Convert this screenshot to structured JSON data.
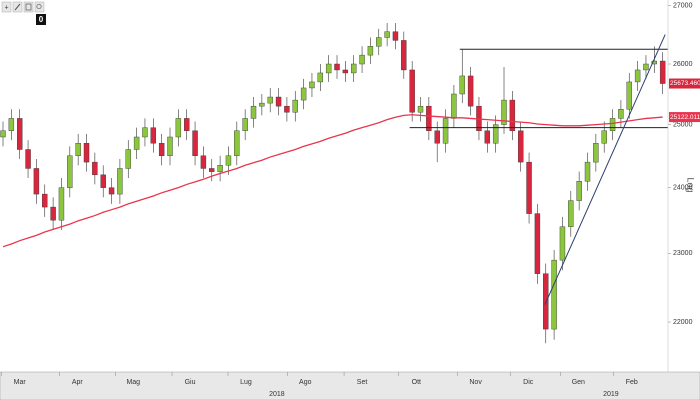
{
  "toolbar_badge": "0",
  "chart_data": {
    "type": "candlestick",
    "yscale": "log",
    "yscale_label": "Log",
    "ylim": [
      21300,
      27100
    ],
    "yticks": [
      22000,
      23000,
      24000,
      25000,
      26000,
      27000
    ],
    "xlim": [
      -0.36,
      79.64
    ],
    "xticks": [
      {
        "value": 2,
        "label": "Mar"
      },
      {
        "value": 8.9,
        "label": "Apr"
      },
      {
        "value": 15.6,
        "label": "Mag"
      },
      {
        "value": 22.4,
        "label": "Giu"
      },
      {
        "value": 29.1,
        "label": "Lug"
      },
      {
        "value": 36.2,
        "label": "Ago"
      },
      {
        "value": 43,
        "label": "Set"
      },
      {
        "value": 49.5,
        "label": "Ott"
      },
      {
        "value": 56.6,
        "label": "Nov"
      },
      {
        "value": 62.9,
        "label": "Dic"
      },
      {
        "value": 68.9,
        "label": "Gen"
      },
      {
        "value": 75.3,
        "label": "Feb"
      }
    ],
    "year_labels": [
      {
        "value": 32.8,
        "label": "2018"
      },
      {
        "value": 72.8,
        "label": "2019"
      }
    ],
    "up_color": "#8cc63f",
    "down_color": "#d7263d",
    "open": [
      24800,
      24900,
      25100,
      24600,
      24300,
      23900,
      23700,
      23500,
      24000,
      24500,
      24700,
      24400,
      24200,
      24000,
      23900,
      24300,
      24600,
      24800,
      24950,
      24700,
      24500,
      24800,
      25100,
      24900,
      24500,
      24300,
      24250,
      24350,
      24500,
      24900,
      25100,
      25300,
      25350,
      25450,
      25300,
      25200,
      25400,
      25600,
      25700,
      25850,
      26000,
      25900,
      25850,
      26000,
      26150,
      26300,
      26450,
      26550,
      26400,
      25900,
      25200,
      25300,
      24900,
      24700,
      25100,
      25500,
      25800,
      25300,
      24900,
      24700,
      25000,
      25400,
      24900,
      24400,
      23600,
      22700,
      21900,
      22900,
      23400,
      23800,
      24100,
      24400,
      24700,
      24900,
      25100,
      25250,
      25700,
      25900,
      26000,
      26050
    ],
    "high": [
      25050,
      25250,
      25250,
      24750,
      24450,
      24050,
      23850,
      24150,
      24650,
      24850,
      24850,
      24550,
      24350,
      24150,
      24450,
      24750,
      24950,
      25100,
      25100,
      24850,
      24950,
      25250,
      25250,
      25050,
      24650,
      24450,
      24500,
      24650,
      25050,
      25250,
      25450,
      25500,
      25600,
      25600,
      25450,
      25550,
      25750,
      25850,
      26000,
      26150,
      26150,
      26050,
      26150,
      26300,
      26450,
      26600,
      26700,
      26700,
      26550,
      26050,
      25450,
      25450,
      25050,
      25250,
      25650,
      26250,
      25950,
      25450,
      25050,
      25150,
      25950,
      25550,
      25050,
      24550,
      23750,
      22850,
      23050,
      23550,
      23950,
      24250,
      24550,
      24850,
      25050,
      25250,
      25400,
      25850,
      26050,
      26150,
      26300,
      26200
    ],
    "low": [
      24650,
      24750,
      24450,
      24150,
      23750,
      23550,
      23350,
      23350,
      23850,
      24350,
      24250,
      24050,
      23850,
      23750,
      23750,
      24150,
      24450,
      24650,
      24550,
      24350,
      24350,
      24650,
      24750,
      24350,
      24150,
      24100,
      24100,
      24200,
      24350,
      24750,
      24950,
      25150,
      25200,
      25150,
      25050,
      25050,
      25250,
      25450,
      25550,
      25700,
      25750,
      25700,
      25700,
      25850,
      26000,
      26150,
      26300,
      26250,
      25750,
      25050,
      25050,
      24750,
      24400,
      24550,
      24950,
      25350,
      25150,
      24750,
      24550,
      24550,
      24850,
      24750,
      24250,
      23450,
      22550,
      21700,
      21750,
      22750,
      23250,
      23650,
      23950,
      24250,
      24550,
      24750,
      24950,
      25100,
      25550,
      25750,
      25850,
      25500
    ],
    "close": [
      24900,
      25100,
      24600,
      24300,
      23900,
      23700,
      23500,
      24000,
      24500,
      24700,
      24400,
      24200,
      24000,
      23900,
      24300,
      24600,
      24800,
      24950,
      24700,
      24500,
      24800,
      25100,
      24900,
      24500,
      24300,
      24250,
      24350,
      24500,
      24900,
      25100,
      25300,
      25350,
      25450,
      25300,
      25200,
      25400,
      25600,
      25700,
      25850,
      26000,
      25900,
      25850,
      26000,
      26150,
      26300,
      26450,
      26550,
      26400,
      25900,
      25200,
      25300,
      24900,
      24700,
      25100,
      25500,
      25800,
      25300,
      24900,
      24700,
      25000,
      25400,
      24900,
      24400,
      23600,
      22700,
      21900,
      22900,
      23400,
      23800,
      24100,
      24400,
      24700,
      24900,
      25100,
      25250,
      25700,
      25900,
      26000,
      26050,
      25673.4609
    ],
    "moving_average": {
      "color": "#e8354f",
      "values": [
        23100,
        23140,
        23190,
        23230,
        23270,
        23320,
        23360,
        23400,
        23440,
        23490,
        23530,
        23570,
        23620,
        23660,
        23700,
        23750,
        23790,
        23830,
        23870,
        23920,
        23960,
        24000,
        24050,
        24090,
        24130,
        24180,
        24220,
        24260,
        24300,
        24350,
        24390,
        24430,
        24480,
        24520,
        24560,
        24600,
        24650,
        24690,
        24730,
        24780,
        24820,
        24860,
        24910,
        24950,
        24990,
        25030,
        25080,
        25120,
        25150,
        25160,
        25150,
        25140,
        25130,
        25120,
        25110,
        25110,
        25100,
        25090,
        25080,
        25070,
        25060,
        25050,
        25040,
        25030,
        25010,
        25000,
        24990,
        24980,
        24980,
        24980,
        24990,
        25000,
        25010,
        25020,
        25040,
        25060,
        25080,
        25100,
        25110,
        25122.0117
      ]
    },
    "annotations": [
      {
        "color": "#222222",
        "x": [
          54.7,
          79.6
        ],
        "y": [
          26250,
          26250
        ]
      },
      {
        "color": "#222222",
        "x": [
          48.7,
          79.6
        ],
        "y": [
          24950,
          24950
        ]
      },
      {
        "color": "#2c3e70",
        "x": [
          64.9,
          79.3
        ],
        "y": [
          22250,
          26500
        ]
      }
    ]
  }
}
